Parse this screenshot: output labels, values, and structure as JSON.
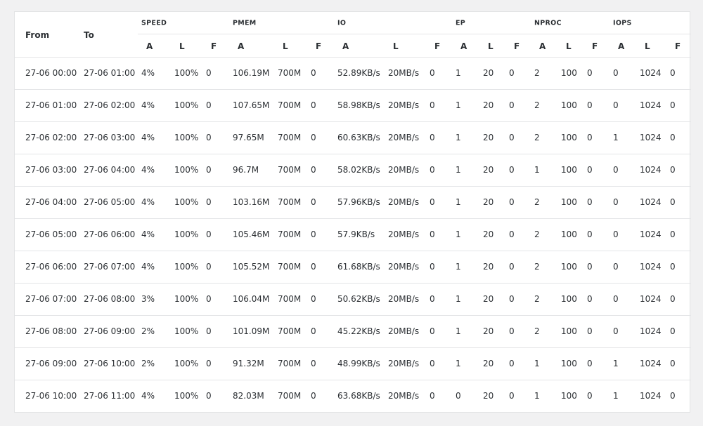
{
  "table": {
    "columns": [
      "From",
      "To"
    ],
    "groups": [
      "SPEED",
      "PMEM",
      "IO",
      "EP",
      "NPROC",
      "IOPS"
    ],
    "subheaders": [
      "A",
      "L",
      "F",
      "A",
      "L",
      "F",
      "A",
      "L",
      "F",
      "A",
      "L",
      "F",
      "A",
      "L",
      "F",
      "A",
      "L",
      "F"
    ],
    "rows": [
      [
        "27-06 00:00",
        "27-06 01:00",
        "4%",
        "100%",
        "0",
        "106.19M",
        "700M",
        "0",
        "52.89KB/s",
        "20MB/s",
        "0",
        "1",
        "20",
        "0",
        "2",
        "100",
        "0",
        "0",
        "1024",
        "0"
      ],
      [
        "27-06 01:00",
        "27-06 02:00",
        "4%",
        "100%",
        "0",
        "107.65M",
        "700M",
        "0",
        "58.98KB/s",
        "20MB/s",
        "0",
        "1",
        "20",
        "0",
        "2",
        "100",
        "0",
        "0",
        "1024",
        "0"
      ],
      [
        "27-06 02:00",
        "27-06 03:00",
        "4%",
        "100%",
        "0",
        "97.65M",
        "700M",
        "0",
        "60.63KB/s",
        "20MB/s",
        "0",
        "1",
        "20",
        "0",
        "2",
        "100",
        "0",
        "1",
        "1024",
        "0"
      ],
      [
        "27-06 03:00",
        "27-06 04:00",
        "4%",
        "100%",
        "0",
        "96.7M",
        "700M",
        "0",
        "58.02KB/s",
        "20MB/s",
        "0",
        "1",
        "20",
        "0",
        "1",
        "100",
        "0",
        "0",
        "1024",
        "0"
      ],
      [
        "27-06 04:00",
        "27-06 05:00",
        "4%",
        "100%",
        "0",
        "103.16M",
        "700M",
        "0",
        "57.96KB/s",
        "20MB/s",
        "0",
        "1",
        "20",
        "0",
        "2",
        "100",
        "0",
        "0",
        "1024",
        "0"
      ],
      [
        "27-06 05:00",
        "27-06 06:00",
        "4%",
        "100%",
        "0",
        "105.46M",
        "700M",
        "0",
        "57.9KB/s",
        "20MB/s",
        "0",
        "1",
        "20",
        "0",
        "2",
        "100",
        "0",
        "0",
        "1024",
        "0"
      ],
      [
        "27-06 06:00",
        "27-06 07:00",
        "4%",
        "100%",
        "0",
        "105.52M",
        "700M",
        "0",
        "61.68KB/s",
        "20MB/s",
        "0",
        "1",
        "20",
        "0",
        "2",
        "100",
        "0",
        "0",
        "1024",
        "0"
      ],
      [
        "27-06 07:00",
        "27-06 08:00",
        "3%",
        "100%",
        "0",
        "106.04M",
        "700M",
        "0",
        "50.62KB/s",
        "20MB/s",
        "0",
        "1",
        "20",
        "0",
        "2",
        "100",
        "0",
        "0",
        "1024",
        "0"
      ],
      [
        "27-06 08:00",
        "27-06 09:00",
        "2%",
        "100%",
        "0",
        "101.09M",
        "700M",
        "0",
        "45.22KB/s",
        "20MB/s",
        "0",
        "1",
        "20",
        "0",
        "2",
        "100",
        "0",
        "0",
        "1024",
        "0"
      ],
      [
        "27-06 09:00",
        "27-06 10:00",
        "2%",
        "100%",
        "0",
        "91.32M",
        "700M",
        "0",
        "48.99KB/s",
        "20MB/s",
        "0",
        "1",
        "20",
        "0",
        "1",
        "100",
        "0",
        "1",
        "1024",
        "0"
      ],
      [
        "27-06 10:00",
        "27-06 11:00",
        "4%",
        "100%",
        "0",
        "82.03M",
        "700M",
        "0",
        "63.68KB/s",
        "20MB/s",
        "0",
        "0",
        "20",
        "0",
        "1",
        "100",
        "0",
        "1",
        "1024",
        "0"
      ]
    ]
  }
}
